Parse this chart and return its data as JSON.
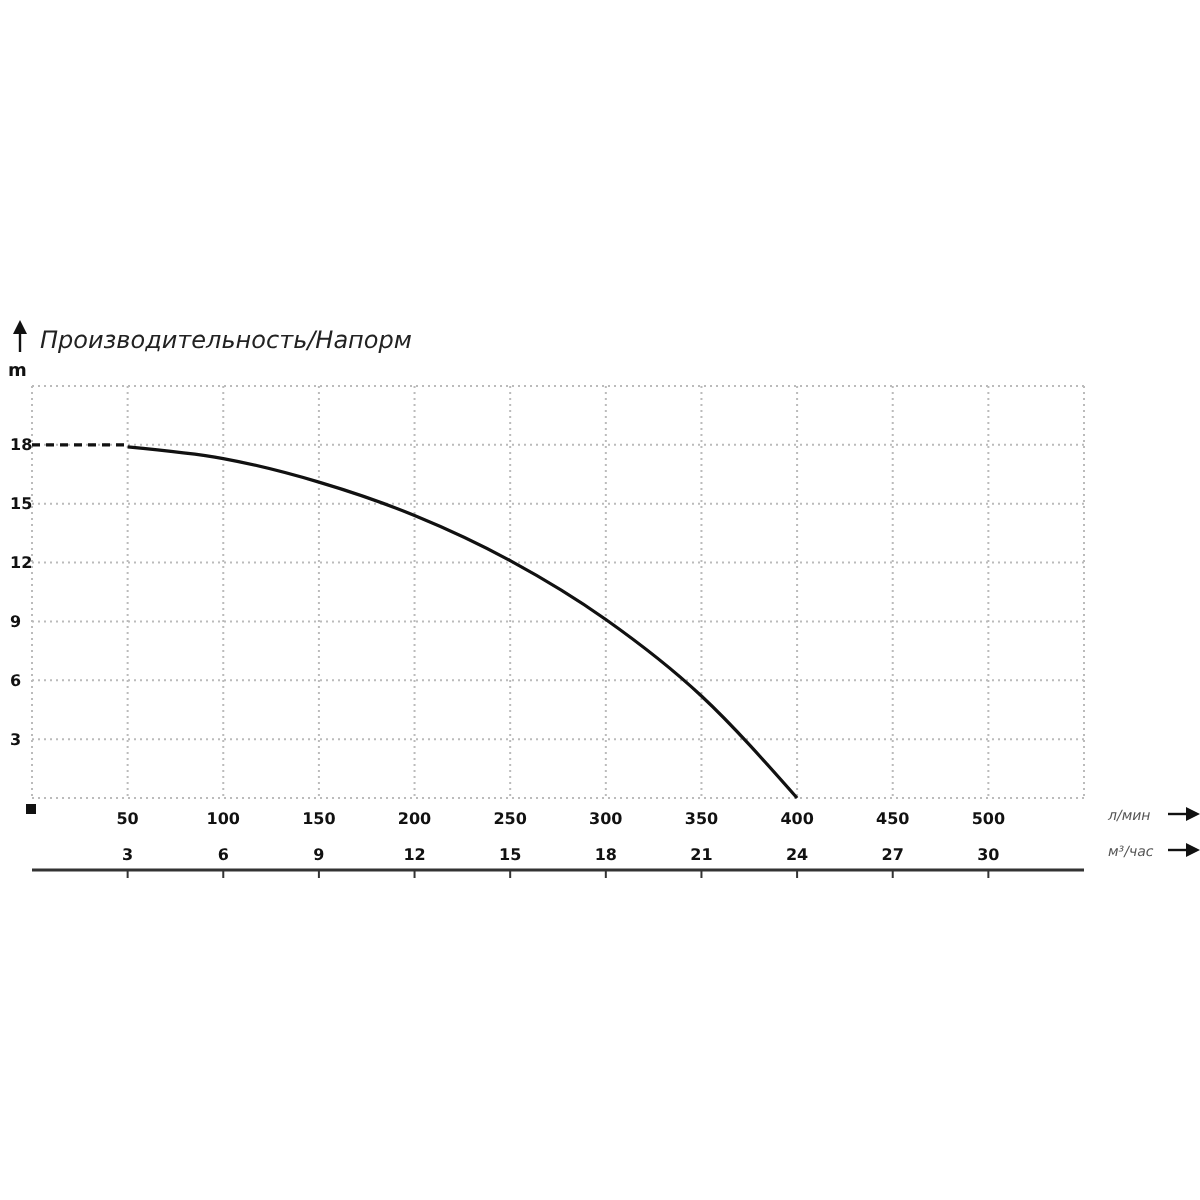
{
  "chart_data": {
    "type": "line",
    "title": "Производительность/Напорм",
    "ylabel": "m",
    "xlabel": "л/мин",
    "x2label": "м³/час",
    "xlim": [
      0,
      550
    ],
    "xticks": [
      50,
      100,
      150,
      200,
      250,
      300,
      350,
      400,
      450,
      500
    ],
    "x2lim": [
      0,
      33
    ],
    "x2ticks": [
      3,
      6,
      9,
      12,
      15,
      18,
      21,
      24,
      27,
      30
    ],
    "ylim": [
      0,
      21
    ],
    "yticks": [
      3,
      6,
      9,
      12,
      15,
      18
    ],
    "grid": true,
    "series": [
      {
        "color": "#111111",
        "line_style": "dashed",
        "x": [
          0,
          50
        ],
        "values": [
          18,
          18
        ]
      },
      {
        "color": "#111111",
        "line_style": "solid",
        "x": [
          50,
          100,
          150,
          200,
          250,
          300,
          350,
          400
        ],
        "values": [
          17.9,
          17.3,
          16.1,
          14.4,
          12.1,
          9.1,
          5.2,
          0
        ]
      }
    ]
  }
}
